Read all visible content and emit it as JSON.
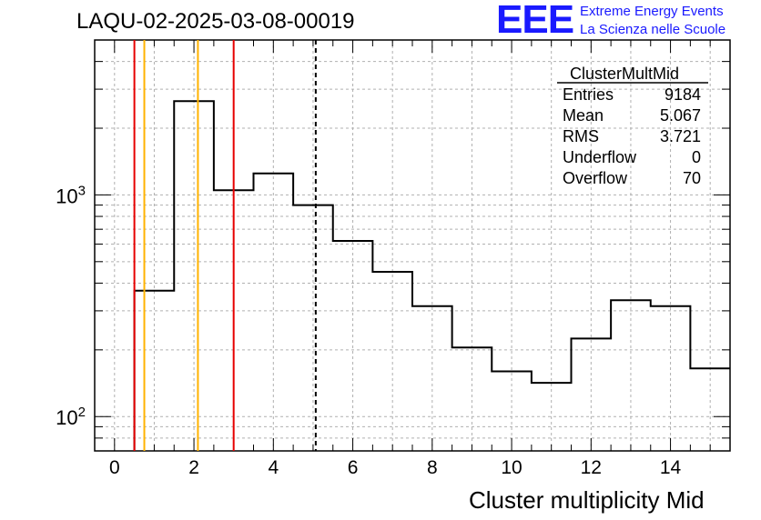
{
  "title": "LAQU-02-2025-03-08-00019",
  "logo": {
    "text": "EEE",
    "line1": "Extreme Energy Events",
    "line2": "La Scienza nelle Scuole",
    "color": "#1a1aff"
  },
  "stats": {
    "name": "ClusterMultMid",
    "rows": [
      {
        "label": "Entries",
        "value": "9184"
      },
      {
        "label": "Mean",
        "value": "5.067"
      },
      {
        "label": "RMS",
        "value": "3.721"
      },
      {
        "label": "Underflow",
        "value": "0"
      },
      {
        "label": "Overflow",
        "value": "70"
      }
    ]
  },
  "chart_data": {
    "type": "histogram",
    "xlabel": "Cluster multiplicity Mid",
    "ylabel": "",
    "xlim": [
      -0.5,
      15.5
    ],
    "ylim": [
      70,
      5000
    ],
    "yscale": "log",
    "grid": true,
    "xticks": [
      "0",
      "2",
      "4",
      "6",
      "8",
      "10",
      "12",
      "14"
    ],
    "yticks": [
      {
        "base": "10",
        "exp": "2",
        "value": 100
      },
      {
        "base": "10",
        "exp": "3",
        "value": 1000
      }
    ],
    "bins": [
      {
        "x": 0,
        "count": 0
      },
      {
        "x": 1,
        "count": 370
      },
      {
        "x": 2,
        "count": 2650
      },
      {
        "x": 3,
        "count": 1050
      },
      {
        "x": 4,
        "count": 1250
      },
      {
        "x": 5,
        "count": 900
      },
      {
        "x": 6,
        "count": 620
      },
      {
        "x": 7,
        "count": 450
      },
      {
        "x": 8,
        "count": 315
      },
      {
        "x": 9,
        "count": 205
      },
      {
        "x": 10,
        "count": 160
      },
      {
        "x": 11,
        "count": 142
      },
      {
        "x": 12,
        "count": 225
      },
      {
        "x": 13,
        "count": 335
      },
      {
        "x": 14,
        "count": 315
      },
      {
        "x": 15,
        "count": 165
      }
    ],
    "vlines": [
      {
        "x": 0.5,
        "color": "#e60000",
        "style": "solid"
      },
      {
        "x": 0.75,
        "color": "#ffb300",
        "style": "solid"
      },
      {
        "x": 2.1,
        "color": "#ffb300",
        "style": "solid"
      },
      {
        "x": 3.0,
        "color": "#e60000",
        "style": "solid"
      },
      {
        "x": 5.067,
        "color": "#000000",
        "style": "dashed"
      }
    ]
  }
}
